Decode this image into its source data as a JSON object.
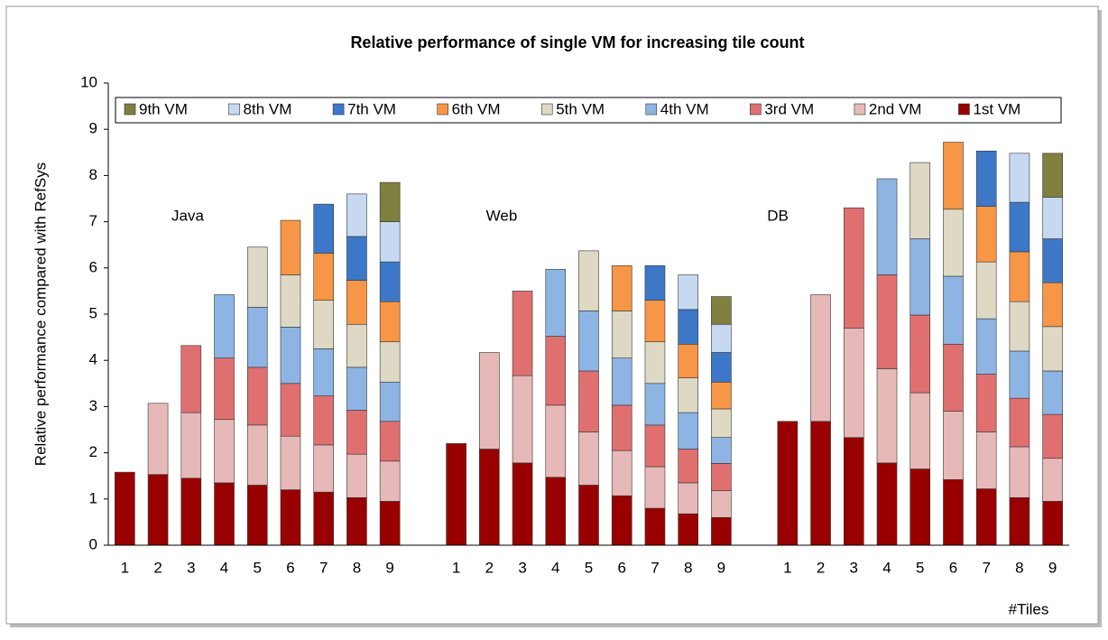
{
  "chart_data": {
    "type": "stacked_bar",
    "title": "Relative performance of single VM for increasing tile count",
    "y_label": "Relative performance compared with RefSys",
    "x_label": "#Tiles",
    "annotations": [
      "Java",
      "Web",
      "DB"
    ],
    "legend": "top",
    "categories": [
      "1",
      "2",
      "3",
      "4",
      "5",
      "6",
      "7",
      "8",
      "9",
      null,
      "1",
      "2",
      "3",
      "4",
      "5",
      "6",
      "7",
      "8",
      "9",
      null,
      "1",
      "2",
      "3",
      "4",
      "5",
      "6",
      "7",
      "8",
      "9"
    ],
    "ylim": [
      0,
      10
    ],
    "yticks": [
      0,
      1,
      2,
      3,
      4,
      5,
      6,
      7,
      8,
      9,
      10
    ],
    "series": [
      {
        "name": "1st VM",
        "color": "#990000",
        "values": [
          1.58,
          1.53,
          1.45,
          1.35,
          1.3,
          1.2,
          1.15,
          1.03,
          0.95,
          null,
          2.2,
          2.08,
          1.78,
          1.47,
          1.3,
          1.07,
          0.8,
          0.68,
          0.6,
          null,
          2.68,
          2.68,
          2.33,
          1.78,
          1.65,
          1.42,
          1.22,
          1.03,
          0.95
        ]
      },
      {
        "name": "2nd VM",
        "color": "#e6b9b8",
        "values": [
          null,
          1.54,
          1.42,
          1.37,
          1.3,
          1.16,
          1.02,
          0.94,
          0.87,
          null,
          null,
          2.09,
          1.89,
          1.56,
          1.15,
          0.98,
          0.9,
          0.67,
          0.58,
          null,
          null,
          2.74,
          2.37,
          2.04,
          1.65,
          1.48,
          1.23,
          1.1,
          0.93
        ]
      },
      {
        "name": "3rd VM",
        "color": "#e07070",
        "values": [
          null,
          null,
          1.45,
          1.33,
          1.25,
          1.14,
          1.06,
          0.95,
          0.86,
          null,
          null,
          null,
          1.83,
          1.49,
          1.32,
          0.98,
          0.9,
          0.73,
          0.59,
          null,
          null,
          null,
          2.6,
          2.03,
          1.68,
          1.45,
          1.25,
          1.05,
          0.95
        ]
      },
      {
        "name": "4th VM",
        "color": "#8eb4e3",
        "values": [
          null,
          null,
          null,
          1.37,
          1.3,
          1.22,
          1.02,
          0.93,
          0.85,
          null,
          null,
          null,
          null,
          1.45,
          1.3,
          1.02,
          0.9,
          0.79,
          0.56,
          null,
          null,
          null,
          null,
          2.08,
          1.65,
          1.47,
          1.2,
          1.02,
          0.94
        ]
      },
      {
        "name": "5th VM",
        "color": "#ddd9c4",
        "values": [
          null,
          null,
          null,
          null,
          1.3,
          1.13,
          1.05,
          0.93,
          0.87,
          null,
          null,
          null,
          null,
          null,
          1.3,
          1.02,
          0.9,
          0.75,
          0.62,
          null,
          null,
          null,
          null,
          null,
          1.65,
          1.45,
          1.23,
          1.07,
          0.96
        ]
      },
      {
        "name": "6th VM",
        "color": "#f79646",
        "values": [
          null,
          null,
          null,
          null,
          null,
          1.18,
          1.02,
          0.95,
          0.87,
          null,
          null,
          null,
          null,
          null,
          null,
          0.98,
          0.9,
          0.73,
          0.58,
          null,
          null,
          null,
          null,
          null,
          null,
          1.45,
          1.2,
          1.08,
          0.95
        ]
      },
      {
        "name": "7th VM",
        "color": "#3d78c8",
        "values": [
          null,
          null,
          null,
          null,
          null,
          null,
          1.06,
          0.95,
          0.86,
          null,
          null,
          null,
          null,
          null,
          null,
          null,
          0.75,
          0.75,
          0.64,
          null,
          null,
          null,
          null,
          null,
          null,
          null,
          1.2,
          1.07,
          0.95
        ]
      },
      {
        "name": "8th VM",
        "color": "#c6d9f1",
        "values": [
          null,
          null,
          null,
          null,
          null,
          null,
          null,
          0.92,
          0.87,
          null,
          null,
          null,
          null,
          null,
          null,
          null,
          null,
          0.75,
          0.61,
          null,
          null,
          null,
          null,
          null,
          null,
          null,
          null,
          1.06,
          0.9
        ]
      },
      {
        "name": "9th VM",
        "color": "#7f7f3f",
        "values": [
          null,
          null,
          null,
          null,
          null,
          null,
          null,
          null,
          0.85,
          null,
          null,
          null,
          null,
          null,
          null,
          null,
          null,
          null,
          0.6,
          null,
          null,
          null,
          null,
          null,
          null,
          null,
          null,
          null,
          0.95
        ]
      }
    ]
  }
}
